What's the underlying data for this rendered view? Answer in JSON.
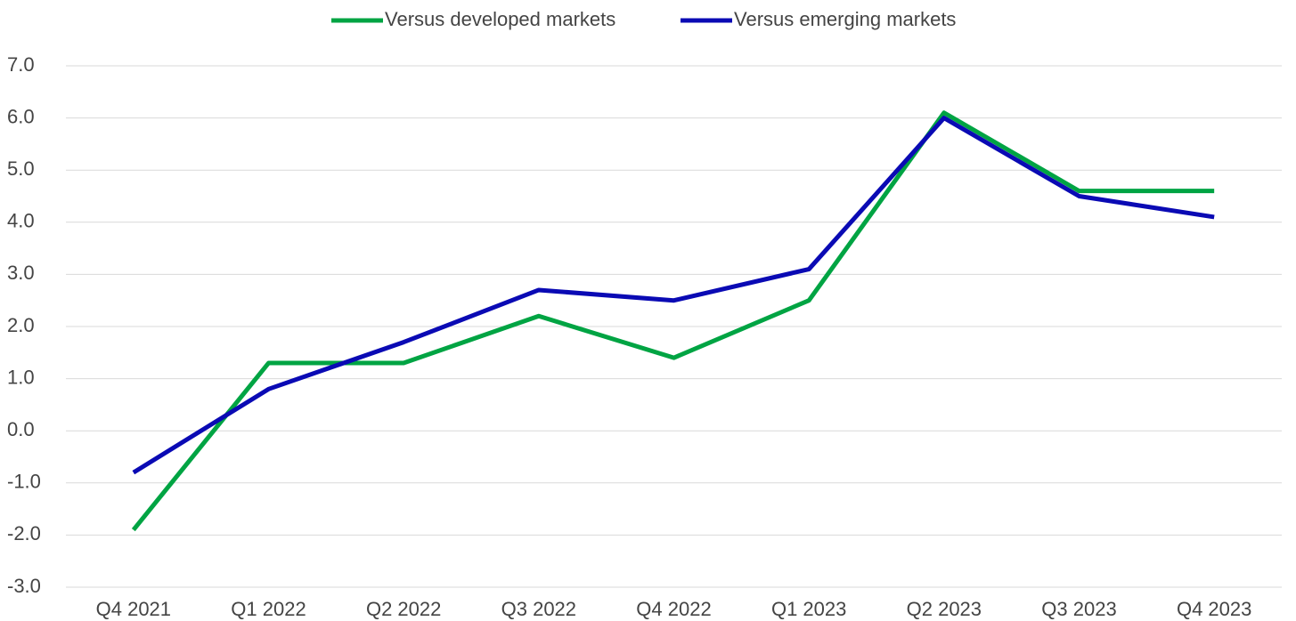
{
  "chart_data": {
    "type": "line",
    "categories": [
      "Q4 2021",
      "Q1 2022",
      "Q2 2022",
      "Q3 2022",
      "Q4 2022",
      "Q1 2023",
      "Q2 2023",
      "Q3 2023",
      "Q4 2023"
    ],
    "series": [
      {
        "name": "Versus developed markets",
        "color": "#00a443",
        "values": [
          -1.9,
          1.3,
          1.3,
          2.2,
          1.4,
          2.5,
          6.1,
          4.6,
          4.6
        ]
      },
      {
        "name": "Versus emerging markets",
        "color": "#0a0ab4",
        "values": [
          -0.8,
          0.8,
          1.7,
          2.7,
          2.5,
          3.1,
          6.0,
          4.5,
          4.1
        ]
      }
    ],
    "ylim": [
      -3,
      7
    ],
    "yticks": [
      {
        "value": -3,
        "label": "-3.0"
      },
      {
        "value": -2,
        "label": "-2.0"
      },
      {
        "value": -1,
        "label": "-1.0"
      },
      {
        "value": 0,
        "label": "0.0"
      },
      {
        "value": 1,
        "label": "1.0"
      },
      {
        "value": 2,
        "label": "2.0"
      },
      {
        "value": 3,
        "label": "3.0"
      },
      {
        "value": 4,
        "label": "4.0"
      },
      {
        "value": 5,
        "label": "5.0"
      },
      {
        "value": 6,
        "label": "6.0"
      },
      {
        "value": 7,
        "label": "7.0"
      }
    ],
    "grid": true,
    "legend": "top"
  }
}
